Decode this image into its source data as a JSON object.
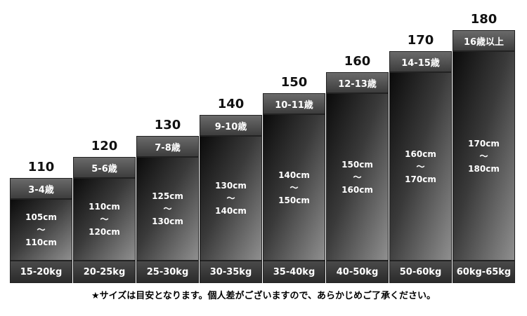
{
  "chart_data": {
    "type": "bar",
    "title": "",
    "xlabel": "",
    "ylabel": "",
    "ylim": [
      100,
      180
    ],
    "grid": false,
    "columns": [
      {
        "size": "110",
        "age": "3-4歳",
        "height_from": "105cm",
        "height_to": "110cm",
        "weight": "15-20kg",
        "value": 110
      },
      {
        "size": "120",
        "age": "5-6歳",
        "height_from": "110cm",
        "height_to": "120cm",
        "weight": "20-25kg",
        "value": 120
      },
      {
        "size": "130",
        "age": "7-8歳",
        "height_from": "125cm",
        "height_to": "130cm",
        "weight": "25-30kg",
        "value": 130
      },
      {
        "size": "140",
        "age": "9-10歳",
        "height_from": "130cm",
        "height_to": "140cm",
        "weight": "30-35kg",
        "value": 140
      },
      {
        "size": "150",
        "age": "10-11歳",
        "height_from": "140cm",
        "height_to": "150cm",
        "weight": "35-40kg",
        "value": 150
      },
      {
        "size": "160",
        "age": "12-13歳",
        "height_from": "150cm",
        "height_to": "160cm",
        "weight": "40-50kg",
        "value": 160
      },
      {
        "size": "170",
        "age": "14-15歳",
        "height_from": "160cm",
        "height_to": "170cm",
        "weight": "50-60kg",
        "value": 170
      },
      {
        "size": "180",
        "age": "16歳以上",
        "height_from": "170cm",
        "height_to": "180cm",
        "weight": "60kg-65kg",
        "value": 180
      }
    ],
    "tilde": "～"
  },
  "footnote": "★サイズは目安となります。個人差がございますので、あらかじめご了承ください。",
  "colors": {
    "bar_dark": "#0b0b0b",
    "bar_light": "#8f8f8f",
    "text_light": "#ffffff",
    "text_dark": "#111111"
  }
}
